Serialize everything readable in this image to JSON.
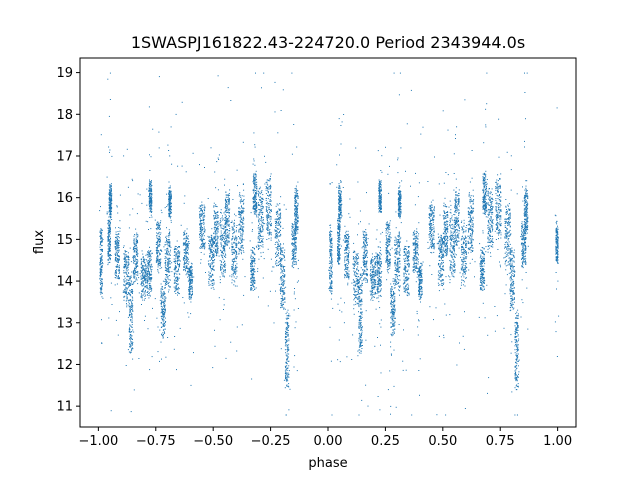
{
  "chart_data": {
    "type": "scatter",
    "title": "1SWASPJ161822.43-224720.0 Period 2343944.0s",
    "xlabel": "phase",
    "ylabel": "flux",
    "xlim": [
      -1.08,
      1.08
    ],
    "ylim": [
      10.5,
      19.35
    ],
    "xticks": [
      -1.0,
      -0.75,
      -0.5,
      -0.25,
      0.0,
      0.25,
      0.5,
      0.75,
      1.0
    ],
    "xtick_labels": [
      "−1.00",
      "−0.75",
      "−0.50",
      "−0.25",
      "0.00",
      "0.25",
      "0.50",
      "0.75",
      "1.00"
    ],
    "yticks": [
      11,
      12,
      13,
      14,
      15,
      16,
      17,
      18,
      19
    ],
    "ytick_labels": [
      "11",
      "12",
      "13",
      "14",
      "15",
      "16",
      "17",
      "18",
      "19"
    ],
    "grid": false,
    "legend": "none",
    "marker_color": "#1f77b4",
    "series": [
      {
        "clusters": [
          {
            "x": -0.99,
            "y": 14.5,
            "xw": 0.006,
            "yw": 0.75
          },
          {
            "x": -0.955,
            "y": 15.0,
            "xw": 0.006,
            "yw": 0.5
          },
          {
            "x": -0.95,
            "y": 15.9,
            "xw": 0.006,
            "yw": 0.35
          },
          {
            "x": -0.92,
            "y": 14.6,
            "xw": 0.01,
            "yw": 0.55
          },
          {
            "x": -0.88,
            "y": 14.1,
            "xw": 0.012,
            "yw": 0.6
          },
          {
            "x": -0.86,
            "y": 13.2,
            "xw": 0.008,
            "yw": 0.9
          },
          {
            "x": -0.84,
            "y": 14.6,
            "xw": 0.01,
            "yw": 0.55
          },
          {
            "x": -0.805,
            "y": 14.1,
            "xw": 0.012,
            "yw": 0.45
          },
          {
            "x": -0.78,
            "y": 14.2,
            "xw": 0.01,
            "yw": 0.5
          },
          {
            "x": -0.775,
            "y": 16.0,
            "xw": 0.006,
            "yw": 0.3
          },
          {
            "x": -0.74,
            "y": 14.9,
            "xw": 0.01,
            "yw": 0.55
          },
          {
            "x": -0.72,
            "y": 13.3,
            "xw": 0.01,
            "yw": 0.6
          },
          {
            "x": -0.7,
            "y": 14.5,
            "xw": 0.012,
            "yw": 0.6
          },
          {
            "x": -0.69,
            "y": 15.9,
            "xw": 0.006,
            "yw": 0.3
          },
          {
            "x": -0.66,
            "y": 14.3,
            "xw": 0.012,
            "yw": 0.55
          },
          {
            "x": -0.62,
            "y": 14.7,
            "xw": 0.012,
            "yw": 0.5
          },
          {
            "x": -0.6,
            "y": 14.0,
            "xw": 0.008,
            "yw": 0.35
          },
          {
            "x": -0.55,
            "y": 15.3,
            "xw": 0.012,
            "yw": 0.55
          },
          {
            "x": -0.51,
            "y": 14.5,
            "xw": 0.012,
            "yw": 0.6
          },
          {
            "x": -0.49,
            "y": 15.2,
            "xw": 0.01,
            "yw": 0.55
          },
          {
            "x": -0.46,
            "y": 14.9,
            "xw": 0.012,
            "yw": 0.75
          },
          {
            "x": -0.44,
            "y": 15.5,
            "xw": 0.01,
            "yw": 0.6
          },
          {
            "x": -0.41,
            "y": 14.7,
            "xw": 0.012,
            "yw": 0.7
          },
          {
            "x": -0.38,
            "y": 15.4,
            "xw": 0.012,
            "yw": 0.7
          },
          {
            "x": -0.33,
            "y": 14.3,
            "xw": 0.01,
            "yw": 0.45
          },
          {
            "x": -0.32,
            "y": 16.1,
            "xw": 0.008,
            "yw": 0.45
          },
          {
            "x": -0.295,
            "y": 15.5,
            "xw": 0.012,
            "yw": 0.7
          },
          {
            "x": -0.26,
            "y": 15.8,
            "xw": 0.012,
            "yw": 0.7
          },
          {
            "x": -0.22,
            "y": 15.1,
            "xw": 0.012,
            "yw": 0.7
          },
          {
            "x": -0.2,
            "y": 14.1,
            "xw": 0.01,
            "yw": 0.7
          },
          {
            "x": -0.18,
            "y": 12.3,
            "xw": 0.008,
            "yw": 0.9
          },
          {
            "x": -0.15,
            "y": 14.9,
            "xw": 0.01,
            "yw": 0.5
          },
          {
            "x": -0.14,
            "y": 15.7,
            "xw": 0.008,
            "yw": 0.5
          },
          {
            "x": 0.01,
            "y": 14.5,
            "xw": 0.006,
            "yw": 0.75
          },
          {
            "x": 0.045,
            "y": 15.0,
            "xw": 0.006,
            "yw": 0.5
          },
          {
            "x": 0.05,
            "y": 15.9,
            "xw": 0.006,
            "yw": 0.35
          },
          {
            "x": 0.08,
            "y": 14.6,
            "xw": 0.01,
            "yw": 0.55
          },
          {
            "x": 0.12,
            "y": 14.1,
            "xw": 0.012,
            "yw": 0.6
          },
          {
            "x": 0.14,
            "y": 13.2,
            "xw": 0.008,
            "yw": 0.9
          },
          {
            "x": 0.16,
            "y": 14.6,
            "xw": 0.01,
            "yw": 0.55
          },
          {
            "x": 0.195,
            "y": 14.1,
            "xw": 0.012,
            "yw": 0.45
          },
          {
            "x": 0.22,
            "y": 14.2,
            "xw": 0.01,
            "yw": 0.5
          },
          {
            "x": 0.225,
            "y": 16.0,
            "xw": 0.006,
            "yw": 0.3
          },
          {
            "x": 0.26,
            "y": 14.9,
            "xw": 0.01,
            "yw": 0.55
          },
          {
            "x": 0.28,
            "y": 13.3,
            "xw": 0.01,
            "yw": 0.6
          },
          {
            "x": 0.3,
            "y": 14.5,
            "xw": 0.012,
            "yw": 0.6
          },
          {
            "x": 0.31,
            "y": 15.9,
            "xw": 0.006,
            "yw": 0.3
          },
          {
            "x": 0.34,
            "y": 14.3,
            "xw": 0.012,
            "yw": 0.55
          },
          {
            "x": 0.38,
            "y": 14.7,
            "xw": 0.012,
            "yw": 0.5
          },
          {
            "x": 0.4,
            "y": 14.0,
            "xw": 0.008,
            "yw": 0.35
          },
          {
            "x": 0.45,
            "y": 15.3,
            "xw": 0.012,
            "yw": 0.55
          },
          {
            "x": 0.49,
            "y": 14.5,
            "xw": 0.012,
            "yw": 0.6
          },
          {
            "x": 0.51,
            "y": 15.2,
            "xw": 0.01,
            "yw": 0.55
          },
          {
            "x": 0.54,
            "y": 14.9,
            "xw": 0.012,
            "yw": 0.75
          },
          {
            "x": 0.56,
            "y": 15.5,
            "xw": 0.01,
            "yw": 0.6
          },
          {
            "x": 0.59,
            "y": 14.7,
            "xw": 0.012,
            "yw": 0.7
          },
          {
            "x": 0.62,
            "y": 15.4,
            "xw": 0.012,
            "yw": 0.7
          },
          {
            "x": 0.67,
            "y": 14.3,
            "xw": 0.01,
            "yw": 0.45
          },
          {
            "x": 0.68,
            "y": 16.1,
            "xw": 0.008,
            "yw": 0.45
          },
          {
            "x": 0.705,
            "y": 15.5,
            "xw": 0.012,
            "yw": 0.7
          },
          {
            "x": 0.74,
            "y": 15.8,
            "xw": 0.012,
            "yw": 0.7
          },
          {
            "x": 0.78,
            "y": 15.1,
            "xw": 0.012,
            "yw": 0.7
          },
          {
            "x": 0.8,
            "y": 14.1,
            "xw": 0.01,
            "yw": 0.7
          },
          {
            "x": 0.82,
            "y": 12.3,
            "xw": 0.008,
            "yw": 0.9
          },
          {
            "x": 0.85,
            "y": 14.9,
            "xw": 0.01,
            "yw": 0.5
          },
          {
            "x": 0.86,
            "y": 15.7,
            "xw": 0.008,
            "yw": 0.5
          },
          {
            "x": 0.995,
            "y": 14.9,
            "xw": 0.005,
            "yw": 0.4
          }
        ]
      }
    ]
  }
}
